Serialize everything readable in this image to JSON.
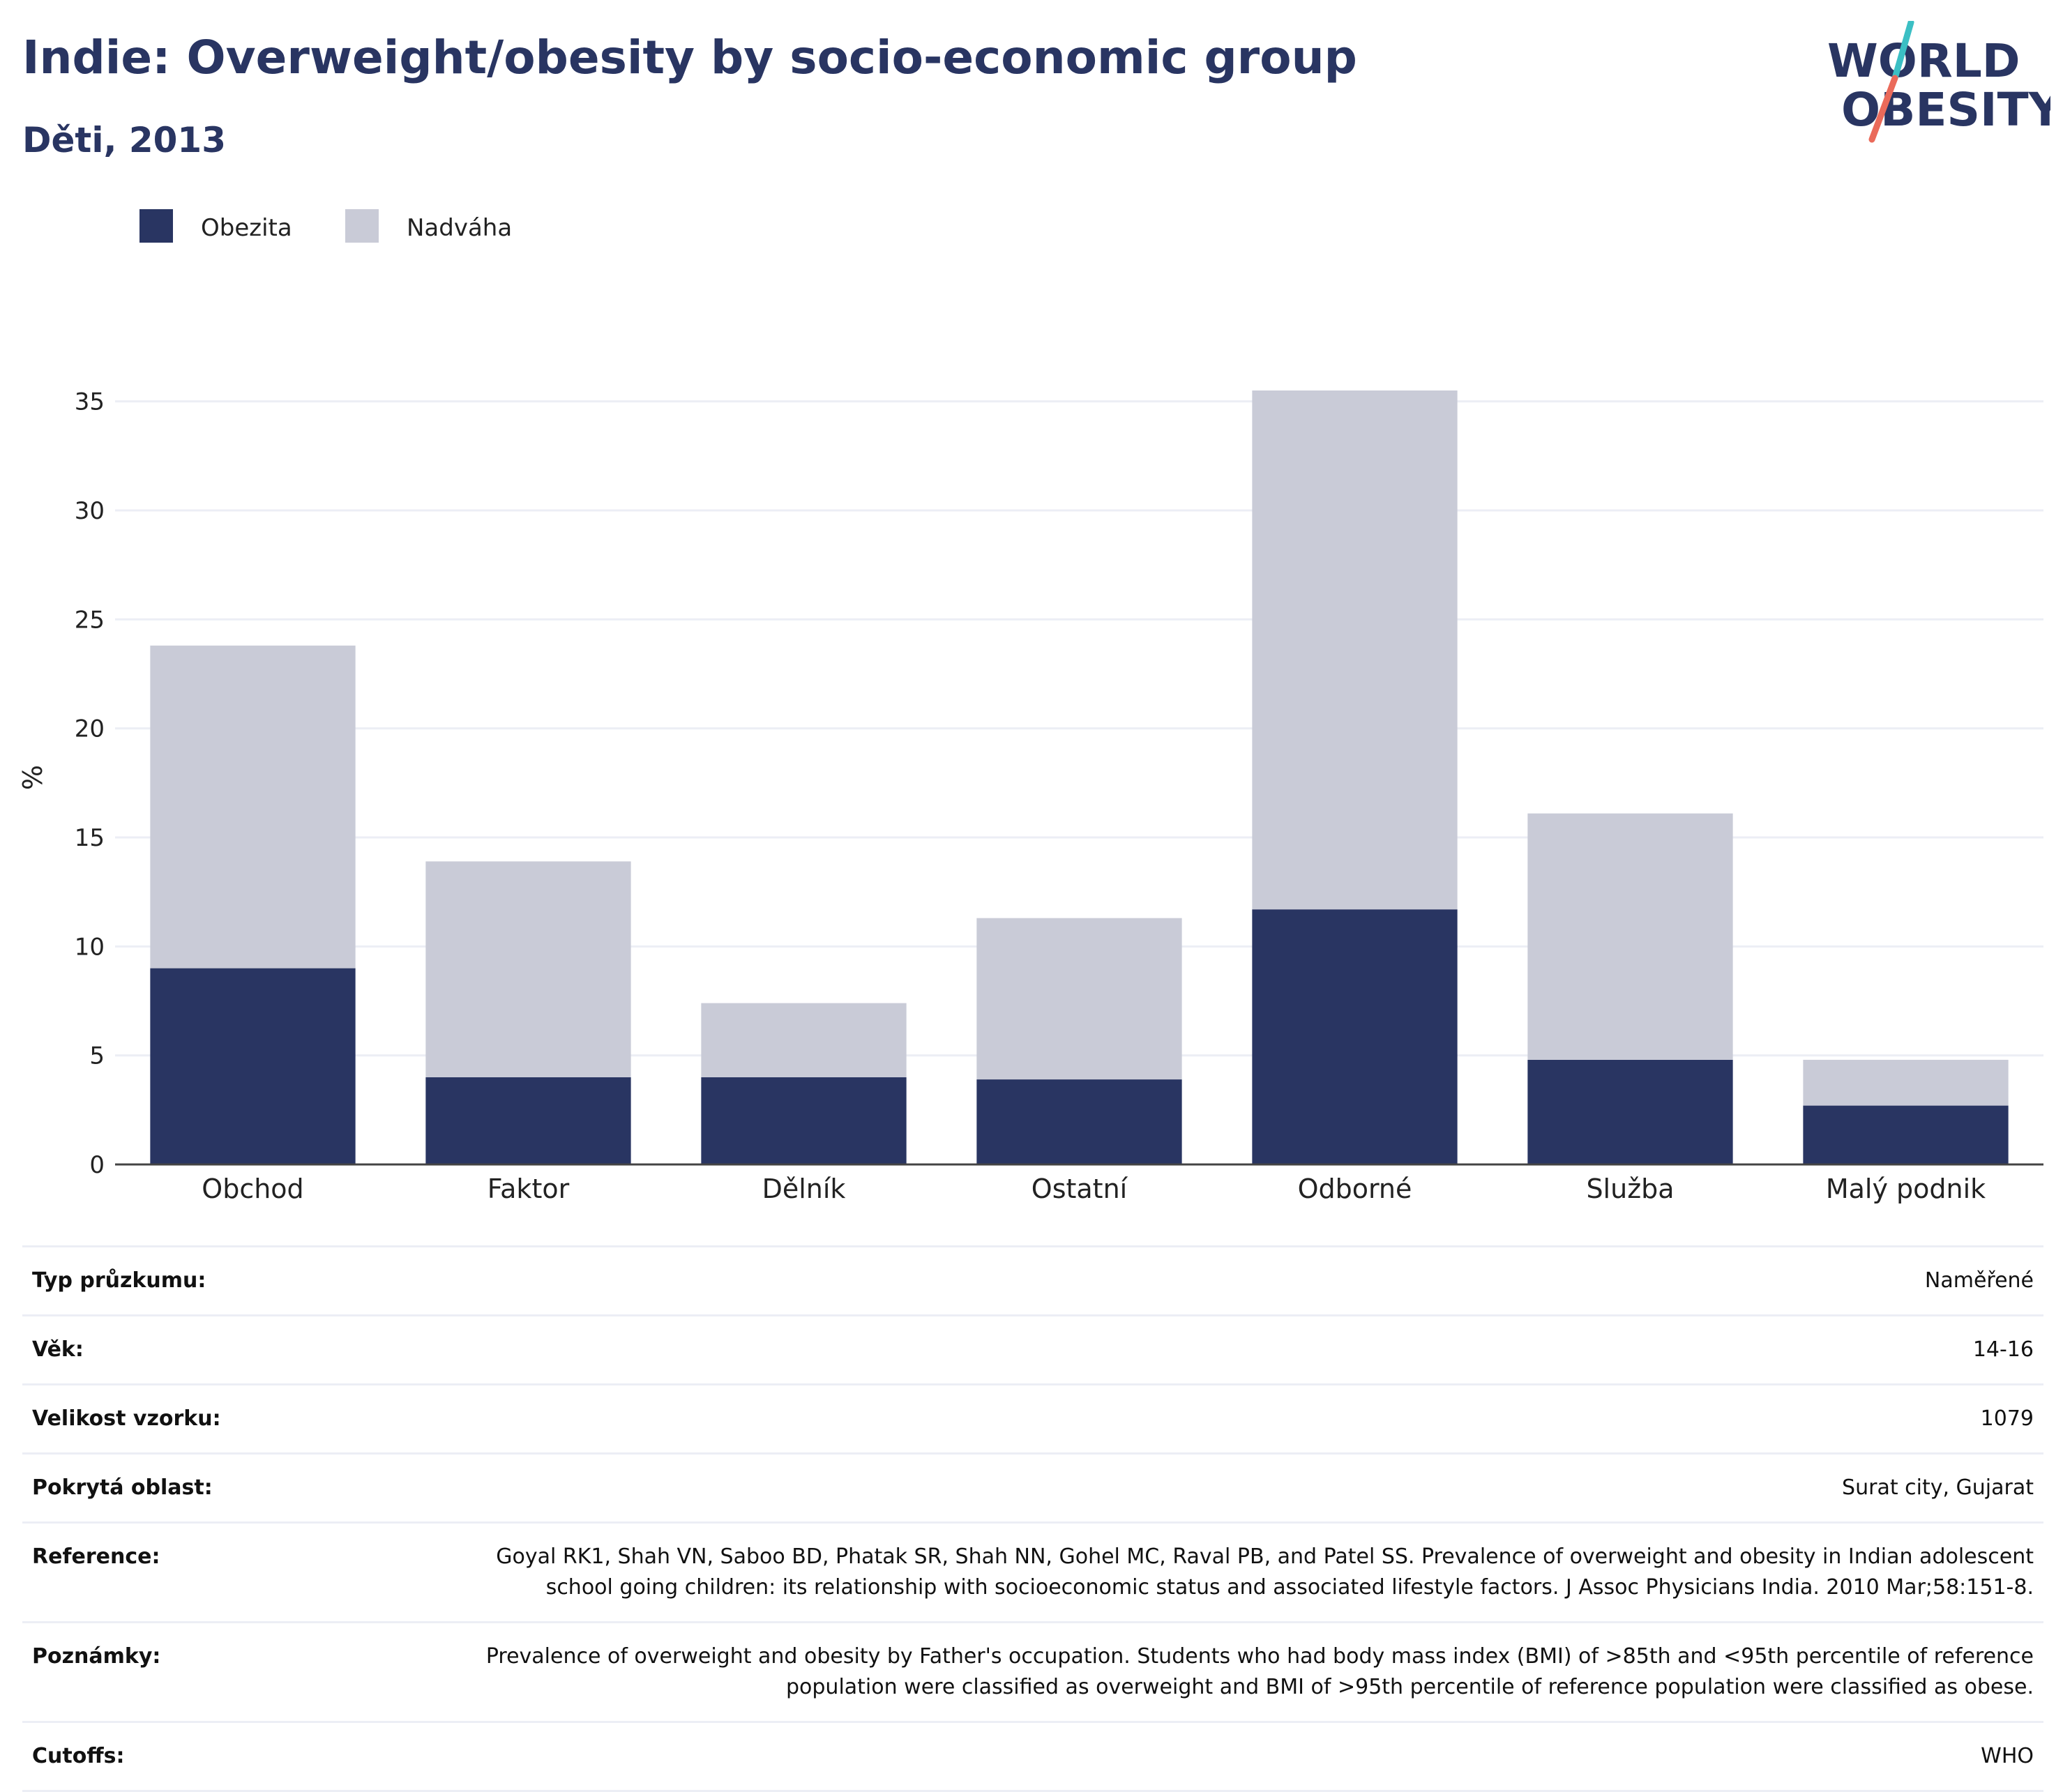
{
  "header": {
    "title": "Indie: Overweight/obesity by socio-economic group",
    "subtitle": "Děti, 2013"
  },
  "logo": {
    "line1": "WORLD",
    "line2": "OBESITY",
    "colors": {
      "text": "#293562",
      "slash_top": "#3bbfc4",
      "slash_bottom": "#ea6a5a"
    }
  },
  "chart_data": {
    "type": "bar",
    "stacked": true,
    "categories": [
      "Obchod",
      "Faktor",
      "Dělník",
      "Ostatní",
      "Odborné",
      "Služba",
      "Malý podnik"
    ],
    "series": [
      {
        "name": "Obezita",
        "color": "#293562",
        "values": [
          9.0,
          4.0,
          4.0,
          3.9,
          11.7,
          4.8,
          2.7
        ]
      },
      {
        "name": "Nadváha",
        "color": "#c9cbd7",
        "values": [
          14.8,
          9.9,
          3.4,
          7.4,
          23.8,
          11.3,
          2.1
        ]
      }
    ],
    "ylabel": "%",
    "ylim": [
      0,
      35.5
    ],
    "yticks": [
      0,
      5,
      10,
      15,
      20,
      25,
      30,
      35
    ],
    "grid": true,
    "legend_position": "top-left",
    "stacked_totals": [
      23.8,
      13.9,
      7.4,
      11.3,
      35.5,
      16.1,
      4.8
    ]
  },
  "details": [
    {
      "label": "Typ průzkumu:",
      "value": "Naměřené"
    },
    {
      "label": "Věk:",
      "value": "14-16"
    },
    {
      "label": "Velikost vzorku:",
      "value": "1079"
    },
    {
      "label": "Pokrytá oblast:",
      "value": "Surat city, Gujarat"
    },
    {
      "label": "Reference:",
      "value": "Goyal RK1, Shah VN, Saboo BD, Phatak SR, Shah NN, Gohel MC, Raval PB, and Patel SS. Prevalence of overweight and obesity in Indian adolescent school going children: its relationship with socioeconomic status and associated lifestyle factors. J Assoc Physicians India. 2010 Mar;58:151-8."
    },
    {
      "label": "Poznámky:",
      "value": "Prevalence of overweight and obesity by Father's occupation. Students who had body mass index (BMI) of >85th and <95th percentile of reference population were classified as overweight and BMI of >95th percentile of reference population were classified as obese."
    },
    {
      "label": "Cutoffs:",
      "value": "WHO"
    }
  ]
}
